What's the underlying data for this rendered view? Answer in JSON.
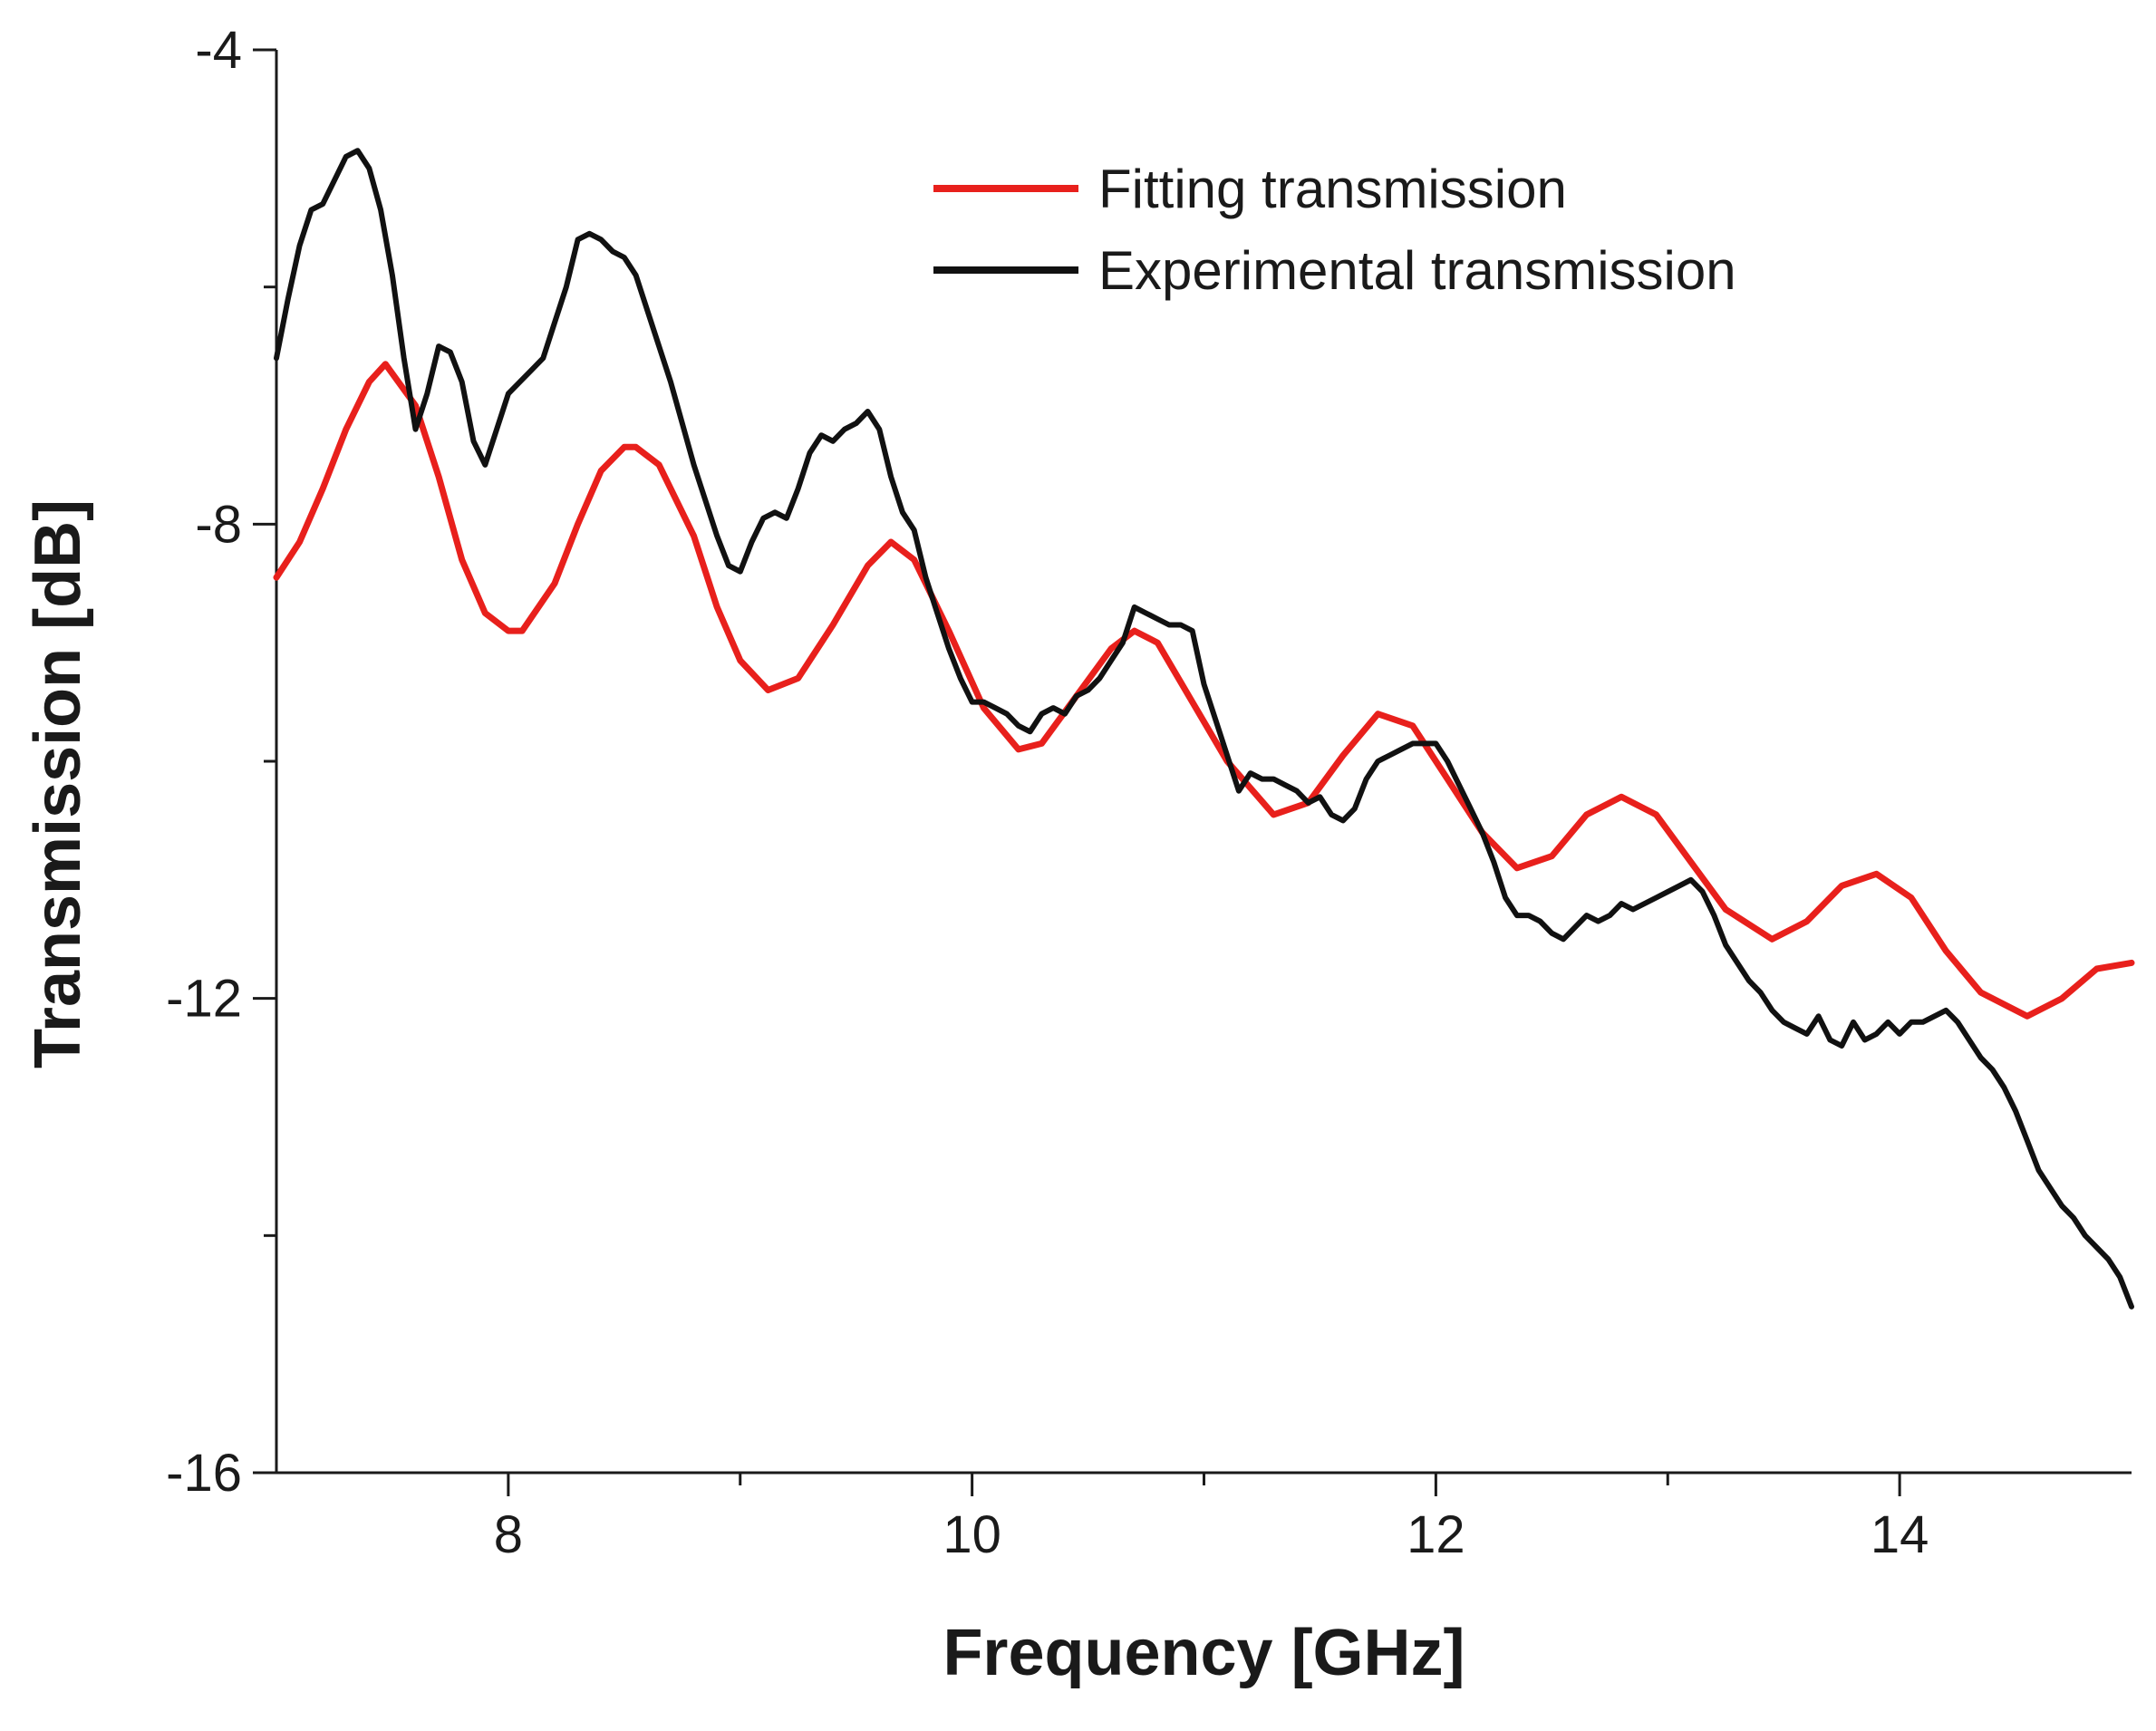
{
  "chart_data": {
    "type": "line",
    "title": "",
    "xlabel": "Frequency [GHz]",
    "ylabel": "Transmission [dB]",
    "xlim": [
      7,
      15
    ],
    "ylim": [
      -16,
      -4
    ],
    "x_major_ticks": [
      8,
      10,
      12,
      14
    ],
    "x_major_tick_labels": [
      "8",
      "10",
      "12",
      "14"
    ],
    "x_minor_ticks": [
      9,
      11,
      13
    ],
    "y_major_ticks": [
      -4,
      -8,
      -12,
      -16
    ],
    "y_major_tick_labels": [
      "-4",
      "-8",
      "-12",
      "-16"
    ],
    "y_minor_ticks": [
      -6,
      -10,
      -14
    ],
    "grid": false,
    "legend_position": "top-right",
    "series": [
      {
        "name": "Fitting transmission",
        "color": "#e8201c",
        "x": [
          7.0,
          7.1,
          7.2,
          7.3,
          7.4,
          7.47,
          7.6,
          7.7,
          7.8,
          7.9,
          8.0,
          8.06,
          8.2,
          8.3,
          8.4,
          8.5,
          8.55,
          8.65,
          8.8,
          8.9,
          9.0,
          9.12,
          9.25,
          9.4,
          9.55,
          9.65,
          9.75,
          9.9,
          10.05,
          10.2,
          10.3,
          10.45,
          10.6,
          10.7,
          10.8,
          10.95,
          11.1,
          11.3,
          11.45,
          11.6,
          11.75,
          11.9,
          12.05,
          12.2,
          12.35,
          12.5,
          12.65,
          12.8,
          12.95,
          13.1,
          13.25,
          13.45,
          13.6,
          13.75,
          13.9,
          14.05,
          14.2,
          14.35,
          14.55,
          14.7,
          14.85,
          15.0
        ],
        "y": [
          -8.45,
          -8.15,
          -7.7,
          -7.2,
          -6.8,
          -6.65,
          -7.0,
          -7.6,
          -8.3,
          -8.75,
          -8.9,
          -8.9,
          -8.5,
          -8.0,
          -7.55,
          -7.35,
          -7.35,
          -7.5,
          -8.1,
          -8.7,
          -9.15,
          -9.4,
          -9.3,
          -8.85,
          -8.35,
          -8.15,
          -8.3,
          -8.9,
          -9.55,
          -9.9,
          -9.85,
          -9.45,
          -9.05,
          -8.9,
          -9.0,
          -9.5,
          -10.0,
          -10.45,
          -10.35,
          -9.95,
          -9.6,
          -9.7,
          -10.15,
          -10.6,
          -10.9,
          -10.8,
          -10.45,
          -10.3,
          -10.45,
          -10.85,
          -11.25,
          -11.5,
          -11.35,
          -11.05,
          -10.95,
          -11.15,
          -11.6,
          -11.95,
          -12.15,
          -12.0,
          -11.75,
          -11.7
        ]
      },
      {
        "name": "Experimental transmission",
        "color": "#111111",
        "x": [
          7.0,
          7.05,
          7.1,
          7.15,
          7.2,
          7.25,
          7.3,
          7.35,
          7.4,
          7.45,
          7.5,
          7.55,
          7.6,
          7.65,
          7.7,
          7.75,
          7.8,
          7.85,
          7.9,
          7.95,
          8.0,
          8.05,
          8.1,
          8.15,
          8.2,
          8.25,
          8.3,
          8.35,
          8.4,
          8.45,
          8.5,
          8.55,
          8.6,
          8.65,
          8.7,
          8.75,
          8.8,
          8.85,
          8.9,
          8.95,
          9.0,
          9.05,
          9.1,
          9.15,
          9.2,
          9.25,
          9.3,
          9.35,
          9.4,
          9.45,
          9.5,
          9.55,
          9.6,
          9.65,
          9.7,
          9.75,
          9.8,
          9.85,
          9.9,
          9.95,
          10.0,
          10.05,
          10.1,
          10.15,
          10.2,
          10.25,
          10.3,
          10.35,
          10.4,
          10.45,
          10.5,
          10.55,
          10.6,
          10.65,
          10.7,
          10.75,
          10.8,
          10.85,
          10.9,
          10.95,
          11.0,
          11.05,
          11.1,
          11.15,
          11.2,
          11.25,
          11.3,
          11.35,
          11.4,
          11.45,
          11.5,
          11.55,
          11.6,
          11.65,
          11.7,
          11.75,
          11.8,
          11.85,
          11.9,
          11.95,
          12.0,
          12.05,
          12.1,
          12.15,
          12.2,
          12.25,
          12.3,
          12.35,
          12.4,
          12.45,
          12.5,
          12.55,
          12.6,
          12.65,
          12.7,
          12.75,
          12.8,
          12.85,
          12.9,
          12.95,
          13.0,
          13.05,
          13.1,
          13.15,
          13.2,
          13.25,
          13.3,
          13.35,
          13.4,
          13.45,
          13.5,
          13.55,
          13.6,
          13.65,
          13.7,
          13.75,
          13.8,
          13.85,
          13.9,
          13.95,
          14.0,
          14.05,
          14.1,
          14.15,
          14.2,
          14.25,
          14.3,
          14.35,
          14.4,
          14.45,
          14.5,
          14.55,
          14.6,
          14.65,
          14.7,
          14.75,
          14.8,
          14.85,
          14.9,
          14.95,
          15.0
        ],
        "y": [
          -6.6,
          -6.1,
          -5.65,
          -5.35,
          -5.3,
          -5.1,
          -4.9,
          -4.85,
          -5.0,
          -5.35,
          -5.9,
          -6.6,
          -7.2,
          -6.9,
          -6.5,
          -6.55,
          -6.8,
          -7.3,
          -7.5,
          -7.2,
          -6.9,
          -6.8,
          -6.7,
          -6.6,
          -6.3,
          -6.0,
          -5.6,
          -5.55,
          -5.6,
          -5.7,
          -5.75,
          -5.9,
          -6.2,
          -6.5,
          -6.8,
          -7.15,
          -7.5,
          -7.8,
          -8.1,
          -8.35,
          -8.4,
          -8.15,
          -7.95,
          -7.9,
          -7.95,
          -7.7,
          -7.4,
          -7.25,
          -7.3,
          -7.2,
          -7.15,
          -7.05,
          -7.2,
          -7.6,
          -7.9,
          -8.05,
          -8.45,
          -8.75,
          -9.05,
          -9.3,
          -9.5,
          -9.5,
          -9.55,
          -9.6,
          -9.7,
          -9.75,
          -9.6,
          -9.55,
          -9.6,
          -9.45,
          -9.4,
          -9.3,
          -9.15,
          -9.0,
          -8.7,
          -8.75,
          -8.8,
          -8.85,
          -8.85,
          -8.9,
          -9.35,
          -9.65,
          -9.95,
          -10.25,
          -10.1,
          -10.15,
          -10.15,
          -10.2,
          -10.25,
          -10.35,
          -10.3,
          -10.45,
          -10.5,
          -10.4,
          -10.15,
          -10.0,
          -9.95,
          -9.9,
          -9.85,
          -9.85,
          -9.85,
          -10.0,
          -10.2,
          -10.4,
          -10.6,
          -10.85,
          -11.15,
          -11.3,
          -11.3,
          -11.35,
          -11.45,
          -11.5,
          -11.4,
          -11.3,
          -11.35,
          -11.3,
          -11.2,
          -11.25,
          -11.2,
          -11.15,
          -11.1,
          -11.05,
          -11.0,
          -11.1,
          -11.3,
          -11.55,
          -11.7,
          -11.85,
          -11.95,
          -12.1,
          -12.2,
          -12.25,
          -12.3,
          -12.15,
          -12.35,
          -12.4,
          -12.2,
          -12.35,
          -12.3,
          -12.2,
          -12.3,
          -12.2,
          -12.2,
          -12.15,
          -12.1,
          -12.2,
          -12.35,
          -12.5,
          -12.6,
          -12.75,
          -12.95,
          -13.2,
          -13.45,
          -13.6,
          -13.75,
          -13.85,
          -14.0,
          -14.1,
          -14.2,
          -14.35,
          -14.6
        ]
      }
    ]
  }
}
